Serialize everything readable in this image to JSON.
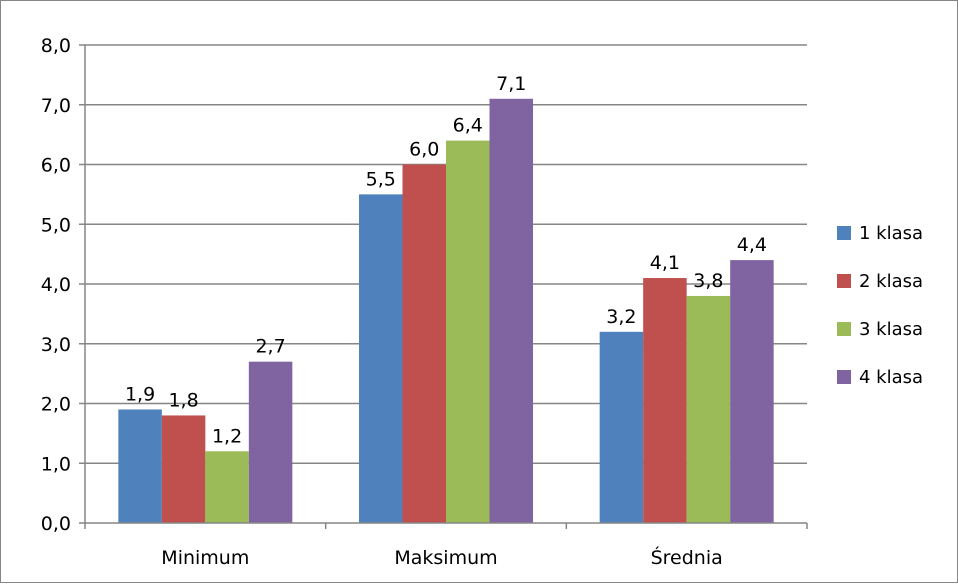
{
  "chart_data": {
    "type": "bar",
    "categories": [
      "Minimum",
      "Maksimum",
      "Średnia"
    ],
    "series": [
      {
        "name": "1 klasa",
        "values": [
          1.9,
          5.5,
          3.2
        ],
        "labels": [
          "1,9",
          "5,5",
          "3,2"
        ],
        "color": "#4F81BD"
      },
      {
        "name": "2 klasa",
        "values": [
          1.8,
          6.0,
          4.1
        ],
        "labels": [
          "1,8",
          "6,0",
          "4,1"
        ],
        "color": "#C0504D"
      },
      {
        "name": "3 klasa",
        "values": [
          1.2,
          6.4,
          3.8
        ],
        "labels": [
          "1,2",
          "6,4",
          "3,8"
        ],
        "color": "#9BBB59"
      },
      {
        "name": "4 klasa",
        "values": [
          2.7,
          7.1,
          4.4
        ],
        "labels": [
          "2,7",
          "7,1",
          "4,4"
        ],
        "color": "#8064A2"
      }
    ],
    "ylim": [
      0,
      8
    ],
    "yticks": [
      "0,0",
      "1,0",
      "2,0",
      "3,0",
      "4,0",
      "5,0",
      "6,0",
      "7,0",
      "8,0"
    ],
    "grid": true,
    "legend_position": "right",
    "title": "",
    "xlabel": "",
    "ylabel": ""
  }
}
